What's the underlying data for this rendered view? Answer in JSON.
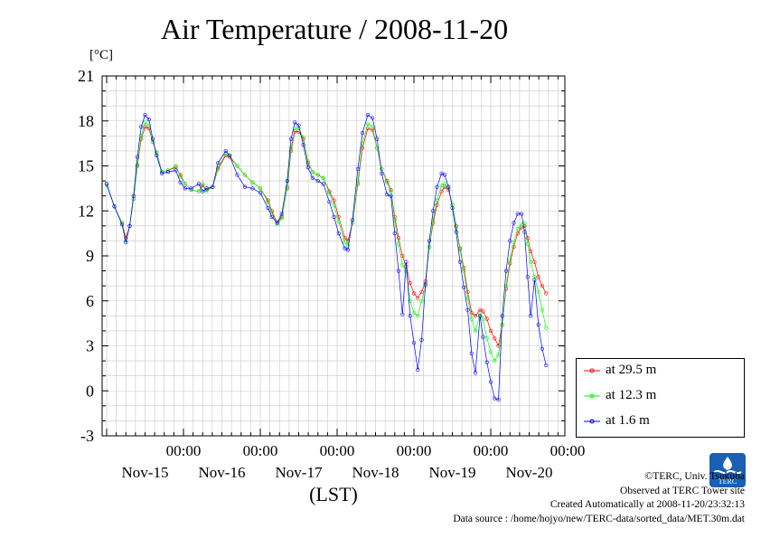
{
  "header": {
    "title": "Air Temperature / 2008-11-20",
    "unit": "[°C]"
  },
  "chart_data": {
    "type": "line",
    "title": "Air Temperature / 2008-11-20",
    "ylabel": "[°C]",
    "xlabel": "(LST)",
    "ylim": [
      -3,
      21
    ],
    "yticks": [
      "21",
      "18",
      "15",
      "12",
      "9",
      "6",
      "3",
      "0",
      "-3"
    ],
    "xlim_days": [
      0,
      6
    ],
    "x_tick_labels": [
      {
        "time": "00:00",
        "day": "Nov-15"
      },
      {
        "time": "00:00",
        "day": "Nov-16"
      },
      {
        "time": "00:00",
        "day": "Nov-17"
      },
      {
        "time": "00:00",
        "day": "Nov-18"
      },
      {
        "time": "00:00",
        "day": "Nov-19"
      },
      {
        "time": "00:00",
        "day": "Nov-20"
      }
    ],
    "grid": true,
    "legend_position": "right",
    "series": [
      {
        "name": "at 29.5 m",
        "color": "#ff0000",
        "points": [
          [
            0.0,
            13.8
          ],
          [
            0.1,
            12.3
          ],
          [
            0.2,
            11.2
          ],
          [
            0.25,
            10.2
          ],
          [
            0.3,
            11.0
          ],
          [
            0.35,
            12.8
          ],
          [
            0.4,
            15.0
          ],
          [
            0.45,
            16.8
          ],
          [
            0.5,
            17.6
          ],
          [
            0.55,
            17.5
          ],
          [
            0.6,
            16.6
          ],
          [
            0.65,
            15.9
          ],
          [
            0.72,
            14.6
          ],
          [
            0.8,
            14.7
          ],
          [
            0.9,
            14.9
          ],
          [
            0.96,
            14.4
          ],
          [
            1.02,
            13.8
          ],
          [
            1.1,
            13.4
          ],
          [
            1.2,
            13.3
          ],
          [
            1.25,
            13.7
          ],
          [
            1.3,
            13.4
          ],
          [
            1.38,
            13.6
          ],
          [
            1.45,
            14.8
          ],
          [
            1.55,
            15.7
          ],
          [
            1.6,
            15.6
          ],
          [
            1.7,
            15.0
          ],
          [
            1.8,
            14.4
          ],
          [
            1.9,
            13.9
          ],
          [
            2.0,
            13.5
          ],
          [
            2.1,
            12.7
          ],
          [
            2.15,
            12.0
          ],
          [
            2.22,
            11.2
          ],
          [
            2.28,
            11.6
          ],
          [
            2.35,
            13.5
          ],
          [
            2.4,
            16.0
          ],
          [
            2.45,
            17.3
          ],
          [
            2.5,
            17.3
          ],
          [
            2.56,
            16.8
          ],
          [
            2.62,
            15.2
          ],
          [
            2.68,
            14.6
          ],
          [
            2.75,
            14.4
          ],
          [
            2.82,
            14.2
          ],
          [
            2.9,
            13.3
          ],
          [
            2.96,
            12.7
          ],
          [
            3.02,
            11.6
          ],
          [
            3.1,
            10.2
          ],
          [
            3.14,
            10.0
          ],
          [
            3.2,
            11.2
          ],
          [
            3.27,
            13.8
          ],
          [
            3.33,
            16.2
          ],
          [
            3.4,
            17.5
          ],
          [
            3.46,
            17.4
          ],
          [
            3.52,
            16.2
          ],
          [
            3.58,
            14.8
          ],
          [
            3.65,
            14.0
          ],
          [
            3.7,
            13.4
          ],
          [
            3.75,
            11.6
          ],
          [
            3.8,
            10.2
          ],
          [
            3.85,
            9.0
          ],
          [
            3.9,
            8.3
          ],
          [
            3.95,
            7.2
          ],
          [
            4.0,
            6.5
          ],
          [
            4.05,
            6.2
          ],
          [
            4.1,
            6.6
          ],
          [
            4.15,
            7.3
          ],
          [
            4.2,
            9.6
          ],
          [
            4.25,
            11.2
          ],
          [
            4.3,
            12.4
          ],
          [
            4.36,
            13.3
          ],
          [
            4.4,
            13.6
          ],
          [
            4.45,
            13.4
          ],
          [
            4.5,
            12.4
          ],
          [
            4.55,
            11.0
          ],
          [
            4.6,
            9.5
          ],
          [
            4.65,
            8.2
          ],
          [
            4.7,
            6.6
          ],
          [
            4.75,
            5.2
          ],
          [
            4.8,
            5.0
          ],
          [
            4.86,
            5.4
          ],
          [
            4.9,
            5.3
          ],
          [
            4.95,
            4.8
          ],
          [
            5.0,
            4.0
          ],
          [
            5.05,
            3.5
          ],
          [
            5.1,
            3.0
          ],
          [
            5.15,
            4.4
          ],
          [
            5.2,
            6.8
          ],
          [
            5.25,
            8.5
          ],
          [
            5.3,
            9.6
          ],
          [
            5.35,
            10.5
          ],
          [
            5.4,
            10.9
          ],
          [
            5.44,
            11.0
          ],
          [
            5.48,
            10.2
          ],
          [
            5.52,
            9.3
          ],
          [
            5.57,
            8.6
          ],
          [
            5.62,
            7.6
          ],
          [
            5.67,
            7.0
          ],
          [
            5.72,
            6.5
          ]
        ]
      },
      {
        "name": "at 12.3 m",
        "color": "#00ff00",
        "points": [
          [
            0.0,
            13.7
          ],
          [
            0.1,
            12.3
          ],
          [
            0.2,
            11.2
          ],
          [
            0.25,
            10.0
          ],
          [
            0.3,
            11.0
          ],
          [
            0.35,
            12.8
          ],
          [
            0.4,
            15.1
          ],
          [
            0.45,
            17.0
          ],
          [
            0.5,
            17.9
          ],
          [
            0.55,
            17.7
          ],
          [
            0.6,
            16.6
          ],
          [
            0.65,
            15.9
          ],
          [
            0.72,
            14.6
          ],
          [
            0.8,
            14.7
          ],
          [
            0.9,
            15.0
          ],
          [
            0.96,
            14.3
          ],
          [
            1.02,
            13.8
          ],
          [
            1.1,
            13.4
          ],
          [
            1.2,
            13.3
          ],
          [
            1.25,
            13.8
          ],
          [
            1.3,
            13.3
          ],
          [
            1.38,
            13.6
          ],
          [
            1.45,
            14.9
          ],
          [
            1.55,
            15.8
          ],
          [
            1.6,
            15.7
          ],
          [
            1.7,
            15.0
          ],
          [
            1.8,
            14.4
          ],
          [
            1.9,
            13.9
          ],
          [
            2.0,
            13.5
          ],
          [
            2.1,
            12.6
          ],
          [
            2.15,
            11.9
          ],
          [
            2.22,
            11.1
          ],
          [
            2.28,
            11.5
          ],
          [
            2.35,
            13.6
          ],
          [
            2.4,
            16.2
          ],
          [
            2.45,
            17.5
          ],
          [
            2.5,
            17.5
          ],
          [
            2.56,
            16.9
          ],
          [
            2.62,
            15.3
          ],
          [
            2.68,
            14.6
          ],
          [
            2.75,
            14.4
          ],
          [
            2.82,
            14.2
          ],
          [
            2.9,
            13.2
          ],
          [
            2.96,
            12.4
          ],
          [
            3.02,
            11.3
          ],
          [
            3.1,
            9.9
          ],
          [
            3.14,
            9.7
          ],
          [
            3.2,
            11.2
          ],
          [
            3.27,
            14.0
          ],
          [
            3.33,
            16.5
          ],
          [
            3.4,
            17.8
          ],
          [
            3.46,
            17.6
          ],
          [
            3.52,
            16.2
          ],
          [
            3.58,
            14.8
          ],
          [
            3.65,
            13.9
          ],
          [
            3.7,
            13.3
          ],
          [
            3.75,
            11.4
          ],
          [
            3.8,
            9.8
          ],
          [
            3.85,
            8.4
          ],
          [
            3.9,
            8.0
          ],
          [
            3.95,
            6.0
          ],
          [
            4.0,
            5.2
          ],
          [
            4.05,
            5.0
          ],
          [
            4.1,
            6.0
          ],
          [
            4.15,
            7.0
          ],
          [
            4.2,
            9.6
          ],
          [
            4.25,
            11.4
          ],
          [
            4.3,
            12.7
          ],
          [
            4.36,
            13.7
          ],
          [
            4.4,
            13.8
          ],
          [
            4.45,
            13.5
          ],
          [
            4.5,
            12.4
          ],
          [
            4.55,
            10.9
          ],
          [
            4.6,
            9.4
          ],
          [
            4.65,
            8.0
          ],
          [
            4.7,
            6.2
          ],
          [
            4.75,
            4.8
          ],
          [
            4.8,
            4.0
          ],
          [
            4.86,
            5.1
          ],
          [
            4.9,
            4.8
          ],
          [
            4.95,
            3.5
          ],
          [
            5.0,
            2.6
          ],
          [
            5.05,
            2.0
          ],
          [
            5.1,
            2.4
          ],
          [
            5.15,
            4.4
          ],
          [
            5.2,
            7.0
          ],
          [
            5.25,
            8.7
          ],
          [
            5.3,
            9.9
          ],
          [
            5.35,
            10.8
          ],
          [
            5.4,
            11.1
          ],
          [
            5.44,
            11.2
          ],
          [
            5.48,
            9.8
          ],
          [
            5.52,
            8.6
          ],
          [
            5.57,
            7.6
          ],
          [
            5.62,
            6.6
          ],
          [
            5.67,
            5.4
          ],
          [
            5.72,
            4.2
          ]
        ]
      },
      {
        "name": "at 1.6 m",
        "color": "#0000ff",
        "points": [
          [
            0.0,
            13.8
          ],
          [
            0.1,
            12.3
          ],
          [
            0.2,
            11.1
          ],
          [
            0.25,
            9.9
          ],
          [
            0.3,
            11.0
          ],
          [
            0.35,
            13.0
          ],
          [
            0.4,
            15.6
          ],
          [
            0.45,
            17.6
          ],
          [
            0.5,
            18.4
          ],
          [
            0.55,
            18.1
          ],
          [
            0.6,
            16.8
          ],
          [
            0.65,
            15.7
          ],
          [
            0.72,
            14.5
          ],
          [
            0.8,
            14.6
          ],
          [
            0.9,
            14.7
          ],
          [
            0.96,
            13.9
          ],
          [
            1.02,
            13.5
          ],
          [
            1.1,
            13.5
          ],
          [
            1.2,
            13.8
          ],
          [
            1.25,
            13.3
          ],
          [
            1.3,
            13.5
          ],
          [
            1.38,
            13.6
          ],
          [
            1.45,
            15.2
          ],
          [
            1.55,
            16.0
          ],
          [
            1.6,
            15.7
          ],
          [
            1.7,
            14.4
          ],
          [
            1.8,
            13.6
          ],
          [
            1.9,
            13.5
          ],
          [
            2.0,
            13.2
          ],
          [
            2.1,
            12.2
          ],
          [
            2.15,
            11.6
          ],
          [
            2.22,
            11.2
          ],
          [
            2.28,
            11.8
          ],
          [
            2.35,
            14.0
          ],
          [
            2.4,
            16.8
          ],
          [
            2.45,
            17.9
          ],
          [
            2.5,
            17.7
          ],
          [
            2.56,
            16.4
          ],
          [
            2.62,
            14.9
          ],
          [
            2.68,
            14.2
          ],
          [
            2.75,
            14.0
          ],
          [
            2.82,
            13.8
          ],
          [
            2.9,
            12.6
          ],
          [
            2.96,
            11.6
          ],
          [
            3.02,
            10.5
          ],
          [
            3.1,
            9.5
          ],
          [
            3.14,
            9.4
          ],
          [
            3.2,
            11.4
          ],
          [
            3.27,
            14.8
          ],
          [
            3.33,
            17.2
          ],
          [
            3.4,
            18.4
          ],
          [
            3.46,
            18.2
          ],
          [
            3.52,
            16.8
          ],
          [
            3.58,
            14.5
          ],
          [
            3.65,
            13.1
          ],
          [
            3.7,
            13.0
          ],
          [
            3.75,
            10.5
          ],
          [
            3.8,
            8.0
          ],
          [
            3.85,
            5.1
          ],
          [
            3.9,
            8.6
          ],
          [
            3.95,
            5.0
          ],
          [
            4.0,
            3.2
          ],
          [
            4.05,
            1.4
          ],
          [
            4.1,
            3.4
          ],
          [
            4.15,
            7.1
          ],
          [
            4.2,
            10.0
          ],
          [
            4.25,
            12.0
          ],
          [
            4.3,
            13.6
          ],
          [
            4.36,
            14.5
          ],
          [
            4.4,
            14.4
          ],
          [
            4.45,
            13.6
          ],
          [
            4.5,
            12.2
          ],
          [
            4.55,
            10.6
          ],
          [
            4.6,
            8.6
          ],
          [
            4.65,
            6.9
          ],
          [
            4.7,
            5.4
          ],
          [
            4.75,
            2.5
          ],
          [
            4.8,
            1.2
          ],
          [
            4.86,
            5.0
          ],
          [
            4.9,
            3.6
          ],
          [
            4.95,
            1.9
          ],
          [
            5.0,
            0.6
          ],
          [
            5.05,
            -0.5
          ],
          [
            5.1,
            -0.6
          ],
          [
            5.15,
            5.0
          ],
          [
            5.2,
            8.0
          ],
          [
            5.25,
            10.0
          ],
          [
            5.3,
            11.2
          ],
          [
            5.35,
            11.8
          ],
          [
            5.4,
            11.8
          ],
          [
            5.44,
            10.6
          ],
          [
            5.48,
            7.6
          ],
          [
            5.52,
            5.0
          ],
          [
            5.57,
            7.4
          ],
          [
            5.62,
            4.4
          ],
          [
            5.67,
            2.8
          ],
          [
            5.72,
            1.7
          ]
        ]
      }
    ]
  },
  "credits": {
    "line1": "©TERC, Univ. Tsukuba",
    "line2": "Observed at TERC Tower site",
    "line3": "Created Automatically at 2008-11-20/23:32:13",
    "line4": "Data source : /home/hojyo/new/TERC-data/sorted_data/MET.30m.dat"
  },
  "logo": {
    "text": "TERC",
    "color": "#1a5fb4"
  }
}
